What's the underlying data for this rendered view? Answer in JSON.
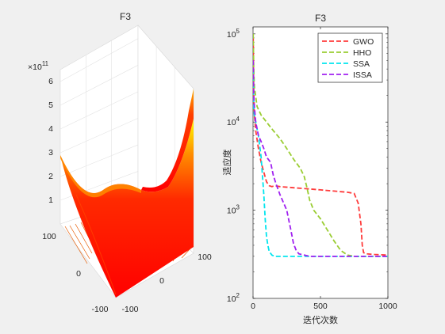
{
  "chart_data": [
    {
      "type": "surface",
      "title": "F3",
      "x_ticks": [
        "100",
        "0",
        "-100"
      ],
      "y_ticks": [
        "-100",
        "0",
        "100"
      ],
      "z_ticks": [
        "1",
        "2",
        "3",
        "4",
        "5",
        "6"
      ],
      "z_exponent_label": "×10",
      "z_exponent_power": "11",
      "z_range": [
        0,
        650000000000.0
      ],
      "colormap": [
        "#ff0000",
        "#ff7f00",
        "#ffff00"
      ]
    },
    {
      "type": "line",
      "title": "F3",
      "xlabel": "迭代次数",
      "ylabel": "适应度",
      "xlim": [
        0,
        1000
      ],
      "ylim": [
        100,
        120000
      ],
      "yscale": "log",
      "x_ticks": [
        0,
        500,
        1000
      ],
      "y_ticks": [
        100,
        1000,
        10000,
        100000
      ],
      "y_tick_exponents": [
        "2",
        "3",
        "4",
        "5"
      ],
      "legend_position": "top-right",
      "series": [
        {
          "name": "GWO",
          "color": "#ff3b3b",
          "x": [
            1,
            5,
            10,
            20,
            40,
            60,
            80,
            100,
            120,
            140,
            160,
            200,
            300,
            400,
            500,
            600,
            700,
            750,
            780,
            800,
            810,
            820,
            840,
            900,
            1000
          ],
          "y": [
            90000,
            20000,
            12000,
            8000,
            5000,
            3500,
            2700,
            2100,
            1900,
            1850,
            1900,
            1850,
            1800,
            1750,
            1700,
            1650,
            1600,
            1550,
            1200,
            700,
            400,
            330,
            320,
            315,
            310
          ]
        },
        {
          "name": "HHO",
          "color": "#9acd32",
          "x": [
            1,
            5,
            10,
            30,
            60,
            100,
            150,
            200,
            250,
            300,
            350,
            380,
            400,
            420,
            450,
            500,
            550,
            600,
            650,
            700,
            750,
            1000
          ],
          "y": [
            100000,
            40000,
            25000,
            15000,
            12000,
            10000,
            8000,
            6500,
            5000,
            3800,
            3000,
            2400,
            1800,
            1300,
            1000,
            800,
            600,
            450,
            350,
            310,
            300,
            300
          ]
        },
        {
          "name": "SSA",
          "color": "#00e5ee",
          "x": [
            1,
            5,
            10,
            20,
            40,
            60,
            80,
            90,
            100,
            110,
            120,
            140,
            160,
            200,
            300,
            1000
          ],
          "y": [
            40000,
            15000,
            12000,
            10000,
            7000,
            4000,
            1500,
            800,
            500,
            400,
            340,
            310,
            300,
            300,
            300,
            300
          ]
        },
        {
          "name": "ISSA",
          "color": "#a020f0",
          "x": [
            1,
            5,
            10,
            20,
            40,
            60,
            80,
            100,
            130,
            150,
            170,
            200,
            250,
            280,
            300,
            320,
            340,
            380,
            420,
            500,
            1000
          ],
          "y": [
            50000,
            20000,
            15000,
            10000,
            7000,
            6000,
            5000,
            4000,
            3500,
            2500,
            2000,
            1500,
            1000,
            600,
            420,
            350,
            320,
            310,
            300,
            300,
            300
          ]
        }
      ]
    }
  ]
}
